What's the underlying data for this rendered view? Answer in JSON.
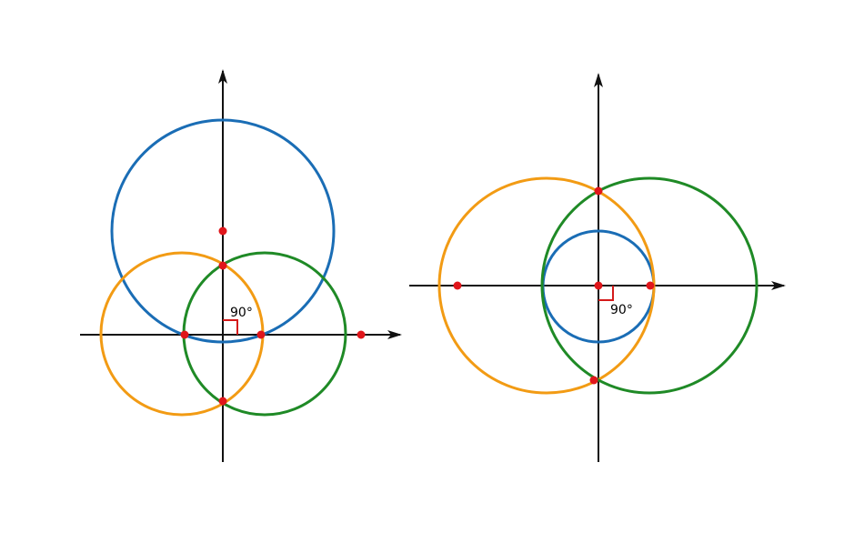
{
  "colors": {
    "axis": "#111111",
    "blue": "#1a6db5",
    "orange": "#f29b14",
    "green": "#1f8a26",
    "point": "#e0161b",
    "right_angle": "#d41a1a"
  },
  "figures": [
    {
      "name": "left-figure",
      "angle_label": "90°"
    },
    {
      "name": "right-figure",
      "angle_label": "90°"
    }
  ]
}
